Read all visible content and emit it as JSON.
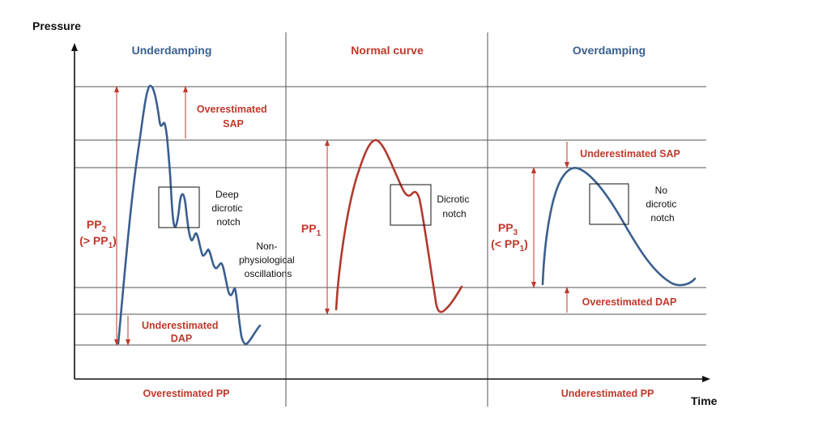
{
  "axes": {
    "y_label": "Pressure",
    "x_label": "Time"
  },
  "colors": {
    "red": "#c0392b",
    "blue": "#3a5f8f",
    "line": "#555555"
  },
  "panels": {
    "underdamping": {
      "title": "Underdamping",
      "sap_label": [
        "Overestimated",
        "SAP"
      ],
      "dap_label": [
        "Underestimated",
        "DAP"
      ],
      "notch_label": [
        "Deep",
        "dicrotic",
        "notch"
      ],
      "osc_label": [
        "Non-",
        "physiological",
        "oscillations"
      ],
      "pp_main": "PP",
      "pp_sub": "2",
      "pp_rel_pre": "(> PP",
      "pp_rel_sub": "1",
      "pp_rel_post": ")",
      "bottom": "Overestimated PP"
    },
    "normal": {
      "title": "Normal curve",
      "notch_label": [
        "Dicrotic",
        "notch"
      ],
      "pp_main": "PP",
      "pp_sub": "1"
    },
    "overdamping": {
      "title": "Overdamping",
      "sap_label": "Underestimated SAP",
      "dap_label": "Overestimated DAP",
      "notch_label": [
        "No",
        "dicrotic",
        "notch"
      ],
      "pp_main": "PP",
      "pp_sub": "3",
      "pp_rel_pre": "(< PP",
      "pp_rel_sub": "1",
      "pp_rel_post": ")",
      "bottom": "Underestimated PP"
    }
  }
}
